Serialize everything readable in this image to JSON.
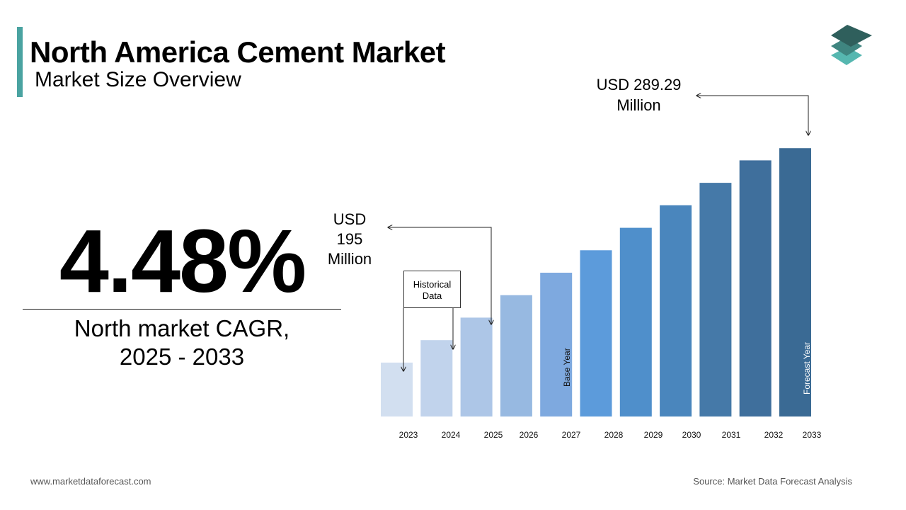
{
  "header": {
    "title": "North America Cement Market",
    "subtitle": "Market Size Overview"
  },
  "cagr": {
    "value": "4.48%",
    "label_line1": "North market CAGR,",
    "label_line2": "2025 - 2033"
  },
  "annotations": {
    "start_value": [
      "USD",
      "195",
      "Million"
    ],
    "end_value": [
      "USD 289.29",
      "Million"
    ],
    "historical": [
      "Historical",
      "Data"
    ],
    "base_year": "Base Year",
    "forecast_year": "Forecast Year"
  },
  "footer": {
    "website": "www.marketdataforecast.com",
    "source": "Source: Market Data Forecast Analysis"
  },
  "colors": {
    "accent": "#4aa3a1",
    "logo_top": "#2f5f5c",
    "logo_mid": "#3f8580",
    "logo_bottom": "#56b7b0"
  },
  "chart_data": {
    "type": "bar",
    "categories": [
      "2023",
      "2024",
      "2025",
      "2026",
      "2027",
      "2028",
      "2029",
      "2030",
      "2031",
      "2032",
      "2033"
    ],
    "values": [
      170,
      182.5,
      195,
      207.5,
      220,
      232.5,
      245,
      257.5,
      270,
      282.5,
      289.29
    ],
    "bar_colors": [
      "#d2dff0",
      "#c1d3ec",
      "#adc6e7",
      "#97b9e1",
      "#7ea9df",
      "#5c9bdb",
      "#4f8fcb",
      "#4a86bd",
      "#4579a8",
      "#3f6f9c",
      "#3a6a94"
    ],
    "ylim": [
      140,
      300
    ],
    "xlabel": "",
    "ylabel": "",
    "labeled_values": [
      {
        "category": "2025",
        "value": 195
      },
      {
        "category": "2033",
        "value": 289.29
      }
    ]
  }
}
